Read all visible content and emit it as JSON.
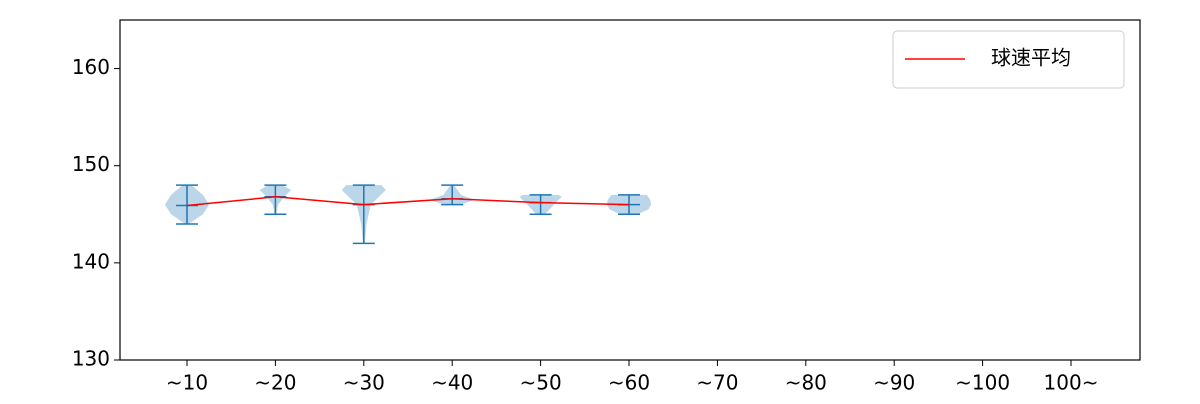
{
  "chart_data": {
    "type": "violin",
    "categories": [
      "~10",
      "~20",
      "~30",
      "~40",
      "~50",
      "~60",
      "~70",
      "~80",
      "~90",
      "~100",
      "100~"
    ],
    "ylim": [
      130,
      165
    ],
    "yticks": [
      130,
      140,
      150,
      160
    ],
    "violin_color": "#1f77b4",
    "violins": [
      {
        "min": 144,
        "max": 148,
        "density": [
          [
            144,
            0.02
          ],
          [
            145,
            0.18
          ],
          [
            146,
            0.25
          ],
          [
            147,
            0.18
          ],
          [
            148,
            0.05
          ]
        ]
      },
      {
        "min": 145,
        "max": 148,
        "density": [
          [
            145,
            0.01
          ],
          [
            146,
            0.03
          ],
          [
            147,
            0.12
          ],
          [
            147.5,
            0.18
          ],
          [
            148,
            0.08
          ]
        ]
      },
      {
        "min": 142,
        "max": 148,
        "density": [
          [
            142,
            0.01
          ],
          [
            144,
            0.03
          ],
          [
            146,
            0.08
          ],
          [
            147.5,
            0.25
          ],
          [
            148,
            0.2
          ]
        ]
      },
      {
        "min": 146,
        "max": 148,
        "density": [
          [
            146,
            0.1
          ],
          [
            146.5,
            0.25
          ],
          [
            147,
            0.1
          ],
          [
            148,
            0.02
          ]
        ]
      },
      {
        "min": 145,
        "max": 147,
        "density": [
          [
            145,
            0.05
          ],
          [
            146,
            0.15
          ],
          [
            146.8,
            0.24
          ],
          [
            147,
            0.2
          ]
        ]
      },
      {
        "min": 145,
        "max": 147,
        "density": [
          [
            145,
            0.1
          ],
          [
            145.5,
            0.22
          ],
          [
            146,
            0.25
          ],
          [
            146.5,
            0.24
          ],
          [
            147,
            0.2
          ]
        ]
      },
      null,
      null,
      null,
      null,
      null
    ],
    "series": [
      {
        "name": "球速平均",
        "color": "#ff0000",
        "values": [
          145.9,
          146.8,
          146.0,
          146.6,
          146.2,
          146.0,
          null,
          null,
          null,
          null,
          null
        ]
      }
    ],
    "legend": "upper right"
  }
}
